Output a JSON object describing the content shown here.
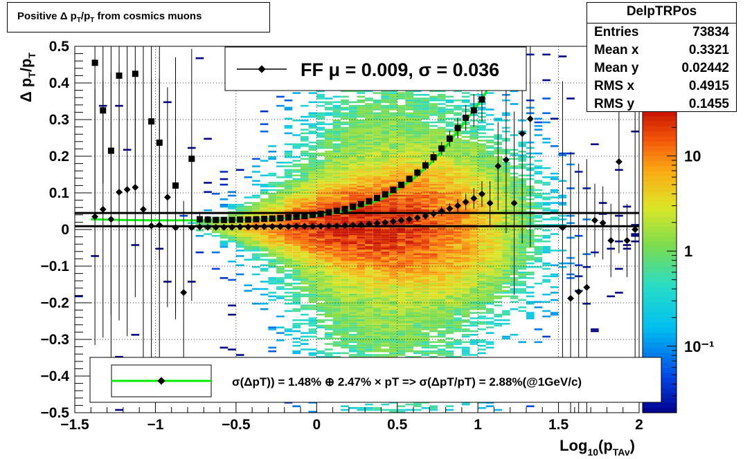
{
  "title": "Positive Δ p_T/p_T from cosmics muons",
  "stats": {
    "name": "DelpTRPos",
    "rows": [
      {
        "label": "Entries",
        "value": "73834"
      },
      {
        "label": "Mean x",
        "value": "0.3321"
      },
      {
        "label": "Mean y",
        "value": "0.02442"
      },
      {
        "label": "RMS x",
        "value": "0.4915"
      },
      {
        "label": "RMS y",
        "value": "0.1455"
      }
    ]
  },
  "legend_top": {
    "text": "FF μ =  0.009, σ =   0.036"
  },
  "legend_bottom": {
    "text": "σ(ΔpT)) =  1.48% ⊕  2.47% × pT => σ(ΔpT/pT) =  2.88%(@1GeV/c)"
  },
  "colors": {
    "fit_curve": "#00ee00",
    "markers": "#000000",
    "sigma_line": "#000000"
  },
  "chart_data": {
    "type": "heatmap",
    "xlabel": "Log10(pTAv)",
    "ylabel": "Δ pT/pT",
    "xlim": [
      -1.5,
      2.0
    ],
    "ylim": [
      -0.5,
      0.5
    ],
    "x_ticks": [
      -1.5,
      -1.0,
      -0.5,
      0,
      0.5,
      1.0,
      1.5,
      2.0
    ],
    "x_tick_labels": [
      "−1.5",
      "−1",
      "−0.5",
      "0",
      "0.5",
      "1",
      "1.5",
      "2"
    ],
    "y_ticks": [
      -0.5,
      -0.4,
      -0.3,
      -0.2,
      -0.1,
      0,
      0.1,
      0.2,
      0.3,
      0.4,
      0.5
    ],
    "y_tick_labels": [
      "−0.5",
      "−0.4",
      "−0.3",
      "−0.2",
      "−0.1",
      "0",
      "0.1",
      "0.2",
      "0.3",
      "0.4",
      "0.5"
    ],
    "grid": true,
    "z_scale": "log",
    "z_ticks": [
      0.1,
      1,
      10
    ],
    "z_tick_labels": [
      "10⁻¹",
      "1",
      "10"
    ],
    "zlim": [
      0.02,
      30
    ],
    "horizontal_lines": [
      0.009,
      0.045
    ],
    "series": [
      {
        "marker": "square",
        "x": [
          -1.375,
          -1.325,
          -1.275,
          -1.225,
          -1.175,
          -1.125,
          -1.075,
          -1.025,
          -0.975,
          -0.925,
          -0.875,
          -0.825,
          -0.775,
          -0.725,
          -0.675,
          -0.625,
          -0.575,
          -0.525,
          -0.475,
          -0.425,
          -0.375,
          -0.325,
          -0.275,
          -0.225,
          -0.175,
          -0.125,
          -0.075,
          -0.025,
          0.025,
          0.075,
          0.125,
          0.175,
          0.225,
          0.275,
          0.325,
          0.375,
          0.425,
          0.475,
          0.525,
          0.575,
          0.625,
          0.675,
          0.725,
          0.775,
          0.825,
          0.875,
          0.925,
          0.975,
          1.025
        ],
        "y": [
          0.455,
          0.325,
          0.215,
          0.42,
          0.0,
          0.425,
          0.0,
          0.295,
          0.237,
          0.0,
          0.12,
          0.0,
          0.193,
          0.028,
          0.027,
          0.026,
          0.026,
          0.026,
          0.027,
          0.027,
          0.028,
          0.029,
          0.03,
          0.031,
          0.033,
          0.035,
          0.037,
          0.04,
          0.043,
          0.047,
          0.051,
          0.056,
          0.062,
          0.069,
          0.077,
          0.086,
          0.096,
          0.108,
          0.122,
          0.138,
          0.155,
          0.175,
          0.197,
          0.221,
          0.248,
          0.277,
          0.305,
          0.325,
          0.355
        ],
        "yerr": [
          0.4,
          0.2,
          0.45,
          0.38,
          0.0,
          0.3,
          0.0,
          0.28,
          0.32,
          0.0,
          0.35,
          0.0,
          0.3,
          0.02,
          0.01,
          0.008,
          0.006,
          0.005,
          0.004,
          0.004,
          0.003,
          0.003,
          0.003,
          0.003,
          0.003,
          0.003,
          0.003,
          0.003,
          0.003,
          0.003,
          0.003,
          0.004,
          0.004,
          0.004,
          0.005,
          0.005,
          0.006,
          0.007,
          0.008,
          0.009,
          0.011,
          0.013,
          0.015,
          0.018,
          0.022,
          0.028,
          0.035,
          0.045,
          0.06
        ]
      },
      {
        "marker": "diamond",
        "x": [
          -1.375,
          -1.325,
          -1.275,
          -1.225,
          -1.175,
          -1.125,
          -1.075,
          -1.025,
          -0.975,
          -0.925,
          -0.875,
          -0.825,
          -0.775,
          -0.725,
          -0.675,
          -0.625,
          -0.575,
          -0.525,
          -0.475,
          -0.425,
          -0.375,
          -0.325,
          -0.275,
          -0.225,
          -0.175,
          -0.125,
          -0.075,
          -0.025,
          0.025,
          0.075,
          0.125,
          0.175,
          0.225,
          0.275,
          0.325,
          0.375,
          0.425,
          0.475,
          0.525,
          0.575,
          0.625,
          0.675,
          0.725,
          0.775,
          0.825,
          0.875,
          0.925,
          0.975,
          1.025,
          1.075,
          1.125,
          1.175,
          1.225,
          1.275,
          1.325,
          1.525,
          1.575,
          1.625,
          1.675,
          1.725,
          1.775,
          1.825,
          1.875,
          1.925,
          1.975
        ],
        "y": [
          0.035,
          0.055,
          0.028,
          0.102,
          0.109,
          0.115,
          0.055,
          0.01,
          0.012,
          0.088,
          0.005,
          -0.172,
          0.005,
          0.007,
          0.006,
          0.006,
          0.006,
          0.006,
          0.007,
          0.007,
          0.007,
          0.008,
          0.008,
          0.008,
          0.008,
          0.009,
          0.009,
          0.009,
          0.009,
          0.01,
          0.01,
          0.011,
          0.012,
          0.013,
          0.015,
          0.017,
          0.019,
          0.022,
          0.025,
          0.028,
          0.032,
          0.037,
          0.043,
          0.05,
          0.057,
          0.065,
          0.075,
          0.085,
          0.097,
          0.072,
          0.173,
          0.19,
          0.072,
          0.262,
          0.302,
          0.005,
          -0.188,
          -0.17,
          -0.158,
          0.025,
          0.018,
          -0.03,
          0.185,
          -0.03,
          0.0
        ],
        "yerr": [
          0.35,
          0.35,
          0.4,
          0.35,
          0.4,
          0.3,
          0.45,
          0.4,
          0.4,
          0.3,
          0.25,
          0.25,
          0.2,
          0.01,
          0.006,
          0.005,
          0.004,
          0.004,
          0.003,
          0.003,
          0.003,
          0.003,
          0.003,
          0.003,
          0.003,
          0.003,
          0.003,
          0.003,
          0.003,
          0.003,
          0.003,
          0.003,
          0.003,
          0.004,
          0.004,
          0.004,
          0.005,
          0.005,
          0.006,
          0.007,
          0.008,
          0.009,
          0.011,
          0.013,
          0.015,
          0.018,
          0.022,
          0.028,
          0.035,
          0.06,
          0.12,
          0.2,
          0.25,
          0.3,
          0.35,
          0.4,
          0.4,
          0.35,
          0.35,
          0.1,
          0.1,
          0.1,
          0.25,
          0.1,
          0.35
        ]
      }
    ],
    "fit_curve": {
      "x": [
        -1.4,
        -1.2,
        -1.0,
        -0.8,
        -0.6,
        -0.4,
        -0.2,
        0.0,
        0.2,
        0.4,
        0.6,
        0.7,
        0.8,
        0.9,
        1.0,
        1.05,
        1.1
      ],
      "y": [
        0.028,
        0.026,
        0.025,
        0.025,
        0.025,
        0.027,
        0.031,
        0.038,
        0.052,
        0.082,
        0.138,
        0.178,
        0.225,
        0.282,
        0.34,
        0.375,
        0.42
      ]
    }
  }
}
